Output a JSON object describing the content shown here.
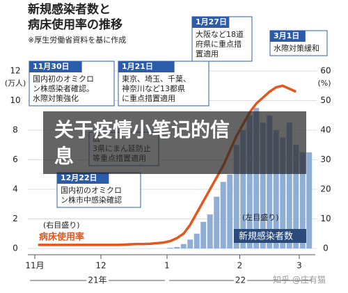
{
  "chart_data": {
    "type": "bar",
    "title": [
      "新規感染者数と",
      "病床使用率の推移"
    ],
    "subtitle": "※厚生労働省資料を基に作成",
    "ylabel": "(万人)",
    "y2label": "(%)",
    "categories": [
      "11月",
      null,
      null,
      null,
      null,
      null,
      null,
      null,
      null,
      null,
      "12",
      null,
      null,
      null,
      null,
      null,
      null,
      null,
      null,
      null,
      "1",
      null,
      null,
      null,
      null,
      null,
      null,
      null,
      null,
      null,
      null,
      "2",
      null,
      null,
      null,
      null,
      null,
      null,
      null,
      null,
      "3",
      null
    ],
    "x_groups": [
      "21年",
      "22"
    ],
    "series": [
      {
        "name": "新規感染者数",
        "scale_note": "(左目盛り)",
        "type": "bar",
        "color": "#8eaed6",
        "values": [
          null,
          null,
          null,
          null,
          null,
          null,
          null,
          null,
          null,
          null,
          null,
          null,
          null,
          null,
          null,
          null,
          null,
          null,
          null,
          null,
          0.05,
          0.1,
          0.3,
          0.6,
          1.0,
          1.8,
          2.3,
          3.5,
          4.5,
          5.0,
          7.0,
          8.0,
          9.0,
          9.5,
          8.5,
          9.0,
          8.0,
          7.5,
          8.5,
          7.0,
          6.5,
          6.5
        ]
      },
      {
        "name": "病床使用率",
        "scale_note": "(右目盛り)",
        "type": "line",
        "axis": "y2",
        "color": "#e4561c",
        "values": [
          1.2,
          1.2,
          1.2,
          1.2,
          1.2,
          1.2,
          1.2,
          1.2,
          1.2,
          1.2,
          1.2,
          1.2,
          1.2,
          1.3,
          1.4,
          1.5,
          1.5,
          1.6,
          1.8,
          2.0,
          2.5,
          3.5,
          5,
          8,
          12,
          16,
          20,
          24,
          28,
          33,
          38,
          42,
          46,
          49,
          51,
          53,
          54.5,
          55,
          54,
          53,
          null,
          null
        ]
      }
    ],
    "ylim": [
      0,
      12
    ],
    "yticks": [
      0,
      2,
      4,
      6,
      8,
      10,
      12
    ],
    "y2lim": [
      0,
      60
    ],
    "y2ticks": [
      0,
      10,
      20,
      30,
      40,
      50,
      60
    ],
    "grid": true,
    "annotations": [
      {
        "title": "11月30日",
        "lines": [
          "国内初のオミクロ",
          "ン株感染者確認。",
          "水際対策強化"
        ]
      },
      {
        "title": "1月21日",
        "lines": [
          "東京、埼玉、千葉、",
          "神奈川など13都県",
          "に重点措置適用"
        ]
      },
      {
        "title": "1月27日",
        "lines": [
          "大阪など18道",
          "府県に重点措",
          "置適用"
        ]
      },
      {
        "title": "3月1日",
        "lines": [
          "水際対策緩和"
        ]
      },
      {
        "lines": [
          "広",
          "3県にまん延防止",
          "等重点措置適用"
        ]
      },
      {
        "title": "12月22日",
        "lines": [
          "国内初のオミクロ",
          "ン株市中感染確認"
        ]
      }
    ]
  },
  "overlay": {
    "banner": "关于疫情小笔记的信息",
    "watermark": "知乎 @庄有猫"
  }
}
